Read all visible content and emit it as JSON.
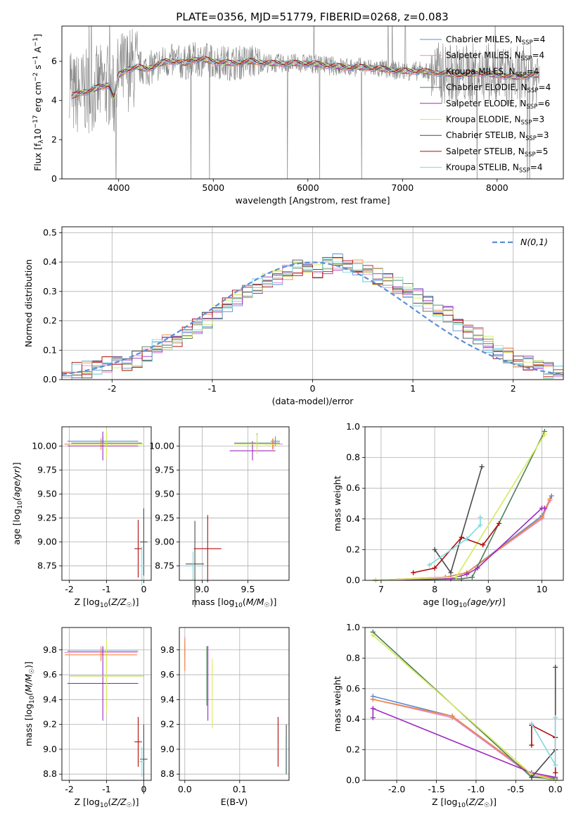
{
  "figure_title": "PLATE=0356, MJD=51779, FIBERID=0268, z=0.083",
  "colors": {
    "Chabrier MILES": "#5b8ed6",
    "Salpeter MILES": "#e58ad0",
    "Kroupa MILES": "#f08a3a",
    "Chabrier ELODIE": "#4f7f5a",
    "Salpeter ELODIE": "#9d2bc0",
    "Kroupa ELODIE": "#d4eb5b",
    "Chabrier STELIB": "#4a4a4a",
    "Salpeter STELIB": "#b30c0c",
    "Kroupa STELIB": "#7fd9e0",
    "data": "#808080",
    "gaussian": "#5b8ed6"
  },
  "chart_data": [
    {
      "type": "line",
      "title": "PLATE=0356, MJD=51779, FIBERID=0268, z=0.083",
      "xlabel": "wavelength [Angstrom, rest frame]",
      "ylabel": "Flux [f_λ 10^-17 erg cm^-2 s^-1 A^-1]",
      "xlim": [
        3400,
        8700
      ],
      "ylim": [
        0,
        7.8
      ],
      "xticks": [
        4000,
        5000,
        6000,
        7000,
        8000
      ],
      "yticks": [
        0,
        2,
        4,
        6
      ],
      "grid": false,
      "legend_position": "right",
      "legend": [
        {
          "label": "Chabrier MILES, N",
          "sub": "SSP",
          "suffix": "=4"
        },
        {
          "label": "Salpeter MILES, N",
          "sub": "SSP",
          "suffix": "=4"
        },
        {
          "label": "Kroupa MILES, N",
          "sub": "SSP",
          "suffix": "=4"
        },
        {
          "label": "Chabrier ELODIE, N",
          "sub": "SSP",
          "suffix": "=4"
        },
        {
          "label": "Salpeter ELODIE, N",
          "sub": "SSP",
          "suffix": "=6"
        },
        {
          "label": "Kroupa ELODIE, N",
          "sub": "SSP",
          "suffix": "=3"
        },
        {
          "label": "Chabrier STELIB, N",
          "sub": "SSP",
          "suffix": "=3"
        },
        {
          "label": "Salpeter STELIB, N",
          "sub": "SSP",
          "suffix": "=5"
        },
        {
          "label": "Kroupa STELIB, N",
          "sub": "SSP",
          "suffix": "=4"
        }
      ],
      "model_continuum": {
        "x": [
          3500,
          3600,
          3700,
          3800,
          3900,
          3950,
          4000,
          4100,
          4200,
          4300,
          4400,
          4500,
          4600,
          4700,
          4800,
          4900,
          5000,
          5200,
          5400,
          5600,
          5800,
          6000,
          6200,
          6400,
          6600,
          6800,
          7000,
          7200,
          7400,
          7600,
          7800,
          8000,
          8200,
          8400
        ],
        "y": [
          4.2,
          4.4,
          4.5,
          4.7,
          4.8,
          4.1,
          5.3,
          5.6,
          5.7,
          5.6,
          5.8,
          6.0,
          6.0,
          5.9,
          6.1,
          6.1,
          6.0,
          5.9,
          6.0,
          5.9,
          5.9,
          5.9,
          5.8,
          5.7,
          5.7,
          5.6,
          5.5,
          5.5,
          5.4,
          5.3,
          5.4,
          5.3,
          5.2,
          5.3
        ]
      }
    },
    {
      "type": "bar",
      "xlabel": "(data-model)/error",
      "ylabel": "Normed distribution",
      "xlim": [
        -2.5,
        2.5
      ],
      "ylim": [
        0,
        0.52
      ],
      "xticks": [
        -2,
        -1,
        0,
        1,
        2
      ],
      "yticks": [
        0.0,
        0.1,
        0.2,
        0.3,
        0.4,
        0.5
      ],
      "grid": true,
      "legend": [
        "N(0,1)"
      ],
      "legend_position": "top-right",
      "bin_edges": [
        -2.5,
        -2.4,
        -2.3,
        -2.2,
        -2.1,
        -2.0,
        -1.9,
        -1.8,
        -1.7,
        -1.6,
        -1.5,
        -1.4,
        -1.3,
        -1.2,
        -1.1,
        -1.0,
        -0.9,
        -0.8,
        -0.7,
        -0.6,
        -0.5,
        -0.4,
        -0.3,
        -0.2,
        -0.1,
        0.0,
        0.1,
        0.2,
        0.3,
        0.4,
        0.5,
        0.6,
        0.7,
        0.8,
        0.9,
        1.0,
        1.1,
        1.2,
        1.3,
        1.4,
        1.5,
        1.6,
        1.7,
        1.8,
        1.9,
        2.0,
        2.1,
        2.2,
        2.3,
        2.4,
        2.5
      ],
      "series_mean": [
        0.02,
        0.03,
        0.035,
        0.04,
        0.05,
        0.055,
        0.06,
        0.07,
        0.09,
        0.11,
        0.13,
        0.14,
        0.16,
        0.18,
        0.2,
        0.23,
        0.26,
        0.28,
        0.3,
        0.32,
        0.34,
        0.35,
        0.37,
        0.38,
        0.39,
        0.37,
        0.39,
        0.4,
        0.39,
        0.38,
        0.36,
        0.35,
        0.34,
        0.32,
        0.3,
        0.28,
        0.26,
        0.24,
        0.22,
        0.19,
        0.17,
        0.15,
        0.12,
        0.1,
        0.08,
        0.06,
        0.05,
        0.04,
        0.03,
        0.025
      ]
    },
    {
      "type": "scatter",
      "panel": "age-vs-Z",
      "xlabel": "Z [log10(Z/Z☉)]",
      "ylabel": "age [log10(age/yr)]",
      "xlim": [
        -2.2,
        0.2
      ],
      "ylim": [
        8.6,
        10.2
      ],
      "xticks": [
        -2,
        -1,
        0
      ],
      "yticks": [
        8.75,
        9.0,
        9.25,
        9.5,
        9.75,
        10.0
      ],
      "points": [
        {
          "name": "Chabrier MILES",
          "x": -1.1,
          "y": 10.05,
          "xerr": 0.95,
          "yerr": 0.05
        },
        {
          "name": "Salpeter MILES",
          "x": -1.15,
          "y": 10.02,
          "xerr": 0.98,
          "yerr": 0.05
        },
        {
          "name": "Kroupa MILES",
          "x": -1.15,
          "y": 10.02,
          "xerr": 0.97,
          "yerr": 0.06
        },
        {
          "name": "Chabrier ELODIE",
          "x": -1.0,
          "y": 10.03,
          "xerr": 0.95,
          "yerr": 0.1
        },
        {
          "name": "Salpeter ELODIE",
          "x": -1.1,
          "y": 10.0,
          "xerr": 0.95,
          "yerr": 0.15
        },
        {
          "name": "Kroupa ELODIE",
          "x": -1.0,
          "y": 10.02,
          "xerr": 1.0,
          "yerr": 0.15
        },
        {
          "name": "Chabrier STELIB",
          "x": 0.0,
          "y": 9.0,
          "xerr": 0.1,
          "yerr": 0.35
        },
        {
          "name": "Salpeter STELIB",
          "x": -0.15,
          "y": 8.93,
          "xerr": 0.1,
          "yerr": 0.3
        },
        {
          "name": "Kroupa STELIB",
          "x": -0.05,
          "y": 8.75,
          "xerr": 0.1,
          "yerr": 0.2
        }
      ]
    },
    {
      "type": "scatter",
      "panel": "age-vs-mass",
      "xlabel": "mass [log10(M/M☉)]",
      "xlim": [
        8.75,
        9.95
      ],
      "ylim": [
        8.6,
        10.2
      ],
      "xticks": [
        9.0,
        9.5
      ],
      "yticks": [
        8.75,
        9.0,
        9.25,
        9.5,
        9.75,
        10.0
      ],
      "points": [
        {
          "name": "Chabrier MILES",
          "x": 9.8,
          "y": 10.05,
          "xerr": 0.05,
          "yerr": 0.05
        },
        {
          "name": "Salpeter MILES",
          "x": 9.78,
          "y": 10.02,
          "xerr": 0.1,
          "yerr": 0.05
        },
        {
          "name": "Kroupa MILES",
          "x": 9.77,
          "y": 10.02,
          "xerr": 0.08,
          "yerr": 0.06
        },
        {
          "name": "Chabrier ELODIE",
          "x": 9.6,
          "y": 10.03,
          "xerr": 0.25,
          "yerr": 0.1
        },
        {
          "name": "Salpeter ELODIE",
          "x": 9.55,
          "y": 9.95,
          "xerr": 0.25,
          "yerr": 0.1
        },
        {
          "name": "Kroupa ELODIE",
          "x": 9.6,
          "y": 10.02,
          "xerr": 0.25,
          "yerr": 0.1
        },
        {
          "name": "Chabrier STELIB",
          "x": 8.92,
          "y": 8.77,
          "xerr": 0.1,
          "yerr": 0.45
        },
        {
          "name": "Salpeter STELIB",
          "x": 9.06,
          "y": 8.93,
          "xerr": 0.15,
          "yerr": 0.35
        },
        {
          "name": "Kroupa STELIB",
          "x": 8.9,
          "y": 8.75,
          "xerr": 0.1,
          "yerr": 0.15
        }
      ]
    },
    {
      "type": "line",
      "panel": "mass-weight-vs-age",
      "xlabel": "age [log10(age/yr)]",
      "ylabel": "mass weight",
      "xlim": [
        6.7,
        10.4
      ],
      "ylim": [
        0,
        1.0
      ],
      "xticks": [
        7,
        8,
        9,
        10
      ],
      "yticks": [
        0.0,
        0.2,
        0.4,
        0.6,
        0.8,
        1.0
      ],
      "grid": true,
      "series": [
        {
          "name": "Chabrier MILES",
          "x": [
            6.9,
            8.2,
            8.6,
            10.0,
            10.18
          ],
          "y": [
            0.0,
            0.02,
            0.05,
            0.42,
            0.55
          ]
        },
        {
          "name": "Salpeter MILES",
          "x": [
            6.9,
            8.2,
            8.6,
            10.0,
            10.15
          ],
          "y": [
            0.0,
            0.02,
            0.05,
            0.4,
            0.52
          ]
        },
        {
          "name": "Kroupa MILES",
          "x": [
            6.9,
            8.2,
            8.6,
            10.0,
            10.15
          ],
          "y": [
            0.0,
            0.02,
            0.05,
            0.41,
            0.53
          ]
        },
        {
          "name": "Chabrier ELODIE",
          "x": [
            6.9,
            8.5,
            8.7,
            10.05
          ],
          "y": [
            0.0,
            0.01,
            0.02,
            0.97
          ]
        },
        {
          "name": "Salpeter ELODIE",
          "x": [
            6.9,
            8.3,
            8.6,
            8.8,
            10.0,
            10.05
          ],
          "y": [
            0.0,
            0.01,
            0.04,
            0.08,
            0.47,
            0.47
          ]
        },
        {
          "name": "Kroupa ELODIE",
          "x": [
            6.9,
            8.4,
            10.05
          ],
          "y": [
            0.0,
            0.02,
            0.95
          ]
        },
        {
          "name": "Chabrier STELIB",
          "x": [
            8.0,
            8.3,
            8.88
          ],
          "y": [
            0.2,
            0.05,
            0.74
          ]
        },
        {
          "name": "Salpeter STELIB",
          "x": [
            7.6,
            8.0,
            8.5,
            8.9,
            9.2
          ],
          "y": [
            0.05,
            0.08,
            0.28,
            0.23,
            0.37
          ]
        },
        {
          "name": "Kroupa STELIB",
          "x": [
            7.9,
            8.6,
            8.85,
            8.85
          ],
          "y": [
            0.1,
            0.27,
            0.36,
            0.41
          ]
        }
      ]
    },
    {
      "type": "scatter",
      "panel": "mass-vs-Z",
      "xlabel": "Z [log10(Z/Z☉)]",
      "ylabel": "mass [log10(M/M☉)]",
      "xlim": [
        -2.2,
        0.2
      ],
      "ylim": [
        8.75,
        9.98
      ],
      "xticks": [
        -2,
        -1,
        0
      ],
      "yticks": [
        8.8,
        9.0,
        9.2,
        9.4,
        9.6,
        9.8
      ],
      "points": [
        {
          "name": "Chabrier MILES",
          "x": -1.1,
          "y": 9.79,
          "xerr": 0.95,
          "yerr": 0.03
        },
        {
          "name": "Salpeter MILES",
          "x": -1.15,
          "y": 9.78,
          "xerr": 0.98,
          "yerr": 0.05
        },
        {
          "name": "Kroupa MILES",
          "x": -1.15,
          "y": 9.76,
          "xerr": 0.97,
          "yerr": 0.05
        },
        {
          "name": "Chabrier ELODIE",
          "x": -1.0,
          "y": 9.59,
          "xerr": 1.0,
          "yerr": 0.24
        },
        {
          "name": "Salpeter ELODIE",
          "x": -1.1,
          "y": 9.53,
          "xerr": 0.95,
          "yerr": 0.3
        },
        {
          "name": "Kroupa ELODIE",
          "x": -1.0,
          "y": 9.59,
          "xerr": 1.0,
          "yerr": 0.3
        },
        {
          "name": "Chabrier STELIB",
          "x": 0.0,
          "y": 8.92,
          "xerr": 0.1,
          "yerr": 0.28
        },
        {
          "name": "Salpeter STELIB",
          "x": -0.15,
          "y": 9.06,
          "xerr": 0.1,
          "yerr": 0.2
        },
        {
          "name": "Kroupa STELIB",
          "x": -0.05,
          "y": 8.9,
          "xerr": 0.08,
          "yerr": 0.12
        }
      ]
    },
    {
      "type": "scatter",
      "panel": "mass-vs-EBV",
      "xlabel": "E(B-V)",
      "xlim": [
        -0.01,
        0.19
      ],
      "ylim": [
        8.75,
        9.98
      ],
      "xticks": [
        0.0,
        0.1
      ],
      "yticks": [
        8.8,
        9.0,
        9.2,
        9.4,
        9.6,
        9.8
      ],
      "points": [
        {
          "name": "Chabrier MILES",
          "x": 0.0,
          "y": 9.79,
          "yerr": 0.05
        },
        {
          "name": "Salpeter MILES",
          "x": 0.0,
          "y": 9.78,
          "yerr": 0.13
        },
        {
          "name": "Kroupa MILES",
          "x": 0.0,
          "y": 9.76,
          "yerr": 0.13
        },
        {
          "name": "Chabrier ELODIE",
          "x": 0.04,
          "y": 9.59,
          "yerr": 0.24
        },
        {
          "name": "Salpeter ELODIE",
          "x": 0.042,
          "y": 9.53,
          "yerr": 0.3
        },
        {
          "name": "Kroupa ELODIE",
          "x": 0.05,
          "y": 9.45,
          "yerr": 0.28
        },
        {
          "name": "Chabrier STELIB",
          "x": 0.185,
          "y": 9.0,
          "yerr": 0.2
        },
        {
          "name": "Salpeter STELIB",
          "x": 0.17,
          "y": 9.06,
          "yerr": 0.2
        },
        {
          "name": "Kroupa STELIB",
          "x": 0.184,
          "y": 8.95,
          "yerr": 0.15
        }
      ]
    },
    {
      "type": "line",
      "panel": "mass-weight-vs-Z",
      "xlabel": "Z [log10(Z/Z☉)]",
      "ylabel": "mass weight",
      "xlim": [
        -2.4,
        0.1
      ],
      "ylim": [
        0,
        1.0
      ],
      "xticks": [
        -2.0,
        -1.5,
        -1.0,
        -0.5,
        0.0
      ],
      "yticks": [
        0.0,
        0.2,
        0.4,
        0.6,
        0.8,
        1.0
      ],
      "grid": true,
      "series": [
        {
          "name": "Chabrier MILES",
          "x": [
            -2.3,
            -1.3,
            -0.3,
            0.0
          ],
          "y": [
            0.55,
            0.42,
            0.03,
            0.0
          ]
        },
        {
          "name": "Salpeter MILES",
          "x": [
            -2.3,
            -1.3,
            -0.3,
            0.0
          ],
          "y": [
            0.53,
            0.41,
            0.03,
            0.02
          ]
        },
        {
          "name": "Kroupa MILES",
          "x": [
            -2.3,
            -1.3,
            -0.3,
            0.0
          ],
          "y": [
            0.53,
            0.42,
            0.04,
            0.01
          ]
        },
        {
          "name": "Chabrier ELODIE",
          "x": [
            -2.3,
            -0.3,
            0.0
          ],
          "y": [
            0.97,
            0.02,
            0.01
          ]
        },
        {
          "name": "Salpeter ELODIE",
          "x": [
            -2.3,
            -2.3,
            -0.3,
            0.0
          ],
          "y": [
            0.41,
            0.47,
            0.05,
            0.02
          ]
        },
        {
          "name": "Kroupa ELODIE",
          "x": [
            -2.3,
            -0.3,
            0.0
          ],
          "y": [
            0.95,
            0.04,
            0.0
          ]
        },
        {
          "name": "Chabrier STELIB",
          "x": [
            -0.3,
            0.0,
            0.0
          ],
          "y": [
            0.02,
            0.2,
            0.74
          ]
        },
        {
          "name": "Salpeter STELIB",
          "x": [
            -0.3,
            -0.3,
            0.0,
            0.0
          ],
          "y": [
            0.23,
            0.36,
            0.28,
            0.05
          ]
        },
        {
          "name": "Kroupa STELIB",
          "x": [
            -0.3,
            0.0,
            0.0
          ],
          "y": [
            0.37,
            0.1,
            0.41
          ]
        }
      ]
    }
  ]
}
